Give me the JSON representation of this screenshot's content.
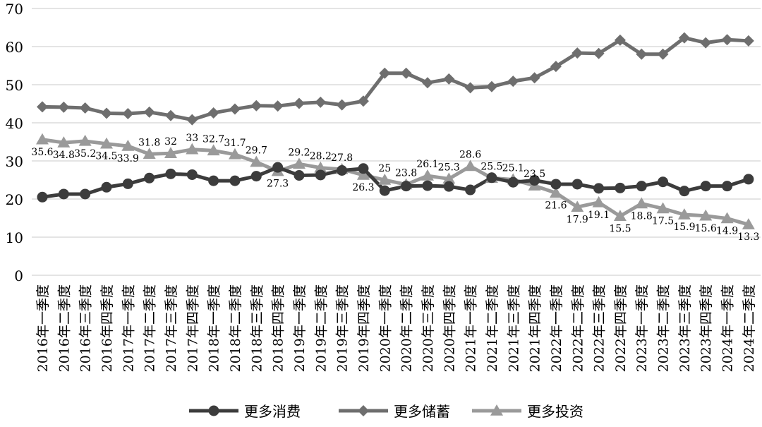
{
  "chart_data": {
    "type": "line",
    "ylim": [
      0,
      70
    ],
    "y_ticks": [
      0,
      10,
      20,
      30,
      40,
      50,
      60,
      70
    ],
    "grid": true,
    "legend_position": "bottom",
    "categories": [
      "2016年一季度",
      "2016年二季度",
      "2016年三季度",
      "2016年四季度",
      "2017年一季度",
      "2017年二季度",
      "2017年三季度",
      "2017年四季度",
      "2018年一季度",
      "2018年二季度",
      "2018年三季度",
      "2018年四季度",
      "2019年一季度",
      "2019年二季度",
      "2019年三季度",
      "2019年四季度",
      "2020年一季度",
      "2020年二季度",
      "2020年三季度",
      "2020年四季度",
      "2021年一季度",
      "2021年二季度",
      "2021年三季度",
      "2021年四季度",
      "2022年一季度",
      "2022年二季度",
      "2022年三季度",
      "2022年四季度",
      "2023年一季度",
      "2023年二季度",
      "2023年三季度",
      "2023年四季度",
      "2024年一季度",
      "2024年二季度"
    ],
    "series": [
      {
        "name": "更多消费",
        "color": "#3c3c3c",
        "marker": "circle",
        "values": [
          20.5,
          21.3,
          21.3,
          23.1,
          24.0,
          25.5,
          26.6,
          26.4,
          24.8,
          24.8,
          26.0,
          28.3,
          26.2,
          26.3,
          27.5,
          28.0,
          22.2,
          23.4,
          23.5,
          23.3,
          22.4,
          25.6,
          24.4,
          24.9,
          23.9,
          23.9,
          22.8,
          22.9,
          23.4,
          24.5,
          22.1,
          23.4,
          23.4,
          25.2
        ]
      },
      {
        "name": "更多储蓄",
        "color": "#6e6e6e",
        "marker": "diamond",
        "values": [
          44.2,
          44.1,
          43.9,
          42.5,
          42.4,
          42.8,
          41.9,
          40.8,
          42.6,
          43.6,
          44.5,
          44.4,
          45.1,
          45.4,
          44.7,
          45.7,
          53.0,
          53.0,
          50.5,
          51.5,
          49.2,
          49.5,
          50.9,
          51.8,
          54.8,
          58.3,
          58.2,
          61.7,
          58.0,
          58.0,
          62.3,
          61.0,
          61.8,
          61.5
        ]
      },
      {
        "name": "更多投资",
        "color": "#9a9a9a",
        "marker": "triangle",
        "values": [
          35.6,
          34.8,
          35.2,
          34.5,
          33.9,
          31.8,
          32,
          33,
          32.7,
          31.7,
          29.7,
          27.3,
          29.2,
          28.2,
          27.8,
          26.3,
          25,
          23.8,
          26.1,
          25.3,
          28.6,
          25.5,
          25.1,
          23.5,
          21.6,
          17.9,
          19.1,
          15.5,
          18.8,
          17.5,
          15.9,
          15.6,
          14.9,
          13.3
        ],
        "labels": [
          "35.6",
          "34.8",
          "35.2",
          "34.5",
          "33.9",
          "31.8",
          "32",
          "33",
          "32.7",
          "31.7",
          "29.7",
          "27.3",
          "29.2",
          "28.2",
          "27.8",
          "26.3",
          "25",
          "23.8",
          "26.1",
          "25.3",
          "28.6",
          "25.5",
          "25.1",
          "23.5",
          "21.6",
          "17.9",
          "19.1",
          "15.5",
          "18.8",
          "17.5",
          "15.9",
          "15.6",
          "14.9",
          "13.3"
        ],
        "label_side": [
          "below",
          "below",
          "below",
          "below",
          "below",
          "above",
          "above",
          "above",
          "above",
          "above",
          "above",
          "below",
          "above",
          "above",
          "above",
          "below",
          "above",
          "above",
          "above",
          "above",
          "above",
          "above",
          "above",
          "above",
          "below",
          "below",
          "below",
          "below",
          "below",
          "below",
          "below",
          "below",
          "below",
          "below"
        ]
      }
    ]
  }
}
